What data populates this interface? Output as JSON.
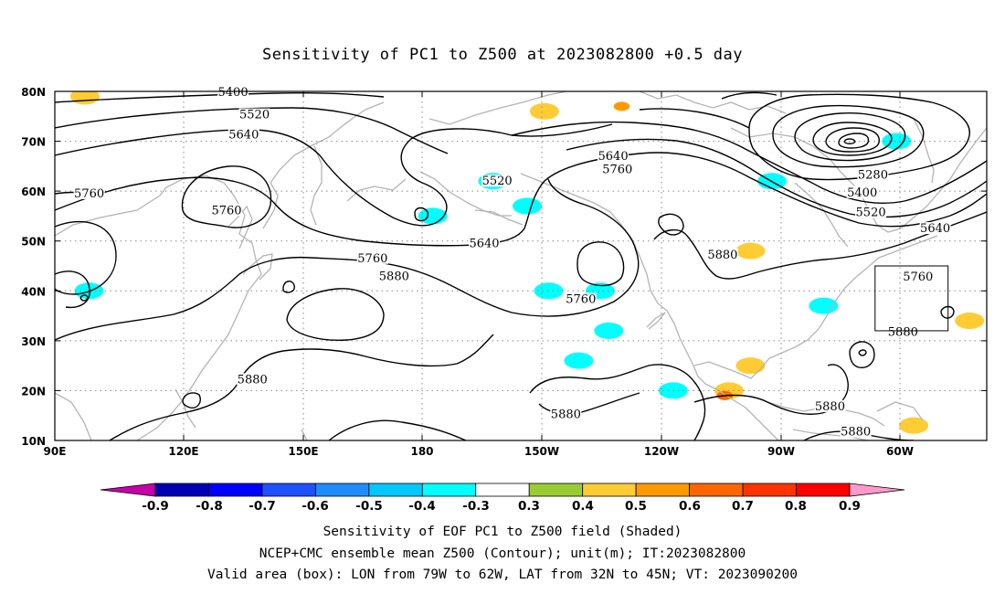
{
  "title": "Sensitivity of PC1 to Z500 at 2023082800 +0.5 day",
  "lat_labels": [
    "80N",
    "70N",
    "60N",
    "50N",
    "40N",
    "30N",
    "20N",
    "10N"
  ],
  "lon_labels": [
    "90E",
    "120E",
    "150E",
    "180",
    "150W",
    "120W",
    "90W",
    "60W"
  ],
  "map_extent": {
    "lon": [
      90,
      307
    ],
    "lat": [
      10,
      80
    ]
  },
  "contours": {
    "line_color": "#000000",
    "labels": [
      {
        "text": "5400",
        "lon": 131.5,
        "lat": 79.8
      },
      {
        "text": "5520",
        "lon": 136.5,
        "lat": 75.3
      },
      {
        "text": "5640",
        "lon": 134,
        "lat": 71.3
      },
      {
        "text": "5760",
        "lon": 98,
        "lat": 59.5
      },
      {
        "text": "5760",
        "lon": 130,
        "lat": 56.1
      },
      {
        "text": "5520",
        "lon": 193,
        "lat": 62
      },
      {
        "text": "5640",
        "lon": 220,
        "lat": 67
      },
      {
        "text": "5760",
        "lon": 221,
        "lat": 64.3
      },
      {
        "text": "5640",
        "lon": 190,
        "lat": 49.5
      },
      {
        "text": "5760",
        "lon": 164,
        "lat": 46.5
      },
      {
        "text": "5880",
        "lon": 169,
        "lat": 42.9
      },
      {
        "text": "5760",
        "lon": 212.5,
        "lat": 38.3
      },
      {
        "text": "5880",
        "lon": 245.5,
        "lat": 47.2
      },
      {
        "text": "5880",
        "lon": 136,
        "lat": 22.2
      },
      {
        "text": "5880",
        "lon": 209,
        "lat": 15.2
      },
      {
        "text": "5880",
        "lon": 270.5,
        "lat": 16.8
      },
      {
        "text": "5880",
        "lon": 276.5,
        "lat": 11.7
      },
      {
        "text": "5880",
        "lon": 287.5,
        "lat": 31.7
      },
      {
        "text": "5280",
        "lon": 280.5,
        "lat": 63.2
      },
      {
        "text": "5400",
        "lon": 278,
        "lat": 59.7
      },
      {
        "text": "5520",
        "lon": 280,
        "lat": 55.7
      },
      {
        "text": "5640",
        "lon": 295,
        "lat": 52.5
      },
      {
        "text": "5760",
        "lon": 291,
        "lat": 42.8
      }
    ]
  },
  "shading": [
    {
      "value": 0.4,
      "lon": 97,
      "lat": 79
    },
    {
      "value": 0.4,
      "lon": 204,
      "lat": 76
    },
    {
      "value": 0.5,
      "lon": 222,
      "lat": 77
    },
    {
      "value": -0.4,
      "lon": 192,
      "lat": 62
    },
    {
      "value": -0.4,
      "lon": 200,
      "lat": 57
    },
    {
      "value": -0.4,
      "lon": 178,
      "lat": 55
    },
    {
      "value": -0.4,
      "lon": 257,
      "lat": 62
    },
    {
      "value": -0.4,
      "lon": 286,
      "lat": 70
    },
    {
      "value": -0.4,
      "lon": 98,
      "lat": 40
    },
    {
      "value": -0.4,
      "lon": 205,
      "lat": 40
    },
    {
      "value": -0.4,
      "lon": 217,
      "lat": 40
    },
    {
      "value": -0.4,
      "lon": 219,
      "lat": 32
    },
    {
      "value": -0.4,
      "lon": 212,
      "lat": 26
    },
    {
      "value": -0.4,
      "lon": 234,
      "lat": 20
    },
    {
      "value": -0.4,
      "lon": 269,
      "lat": 37
    },
    {
      "value": 0.4,
      "lon": 252,
      "lat": 48
    },
    {
      "value": 0.4,
      "lon": 252,
      "lat": 25
    },
    {
      "value": 0.4,
      "lon": 247,
      "lat": 20
    },
    {
      "value": 0.6,
      "lon": 246,
      "lat": 19
    },
    {
      "value": 0.4,
      "lon": 303,
      "lat": 34
    },
    {
      "value": 0.4,
      "lon": 290,
      "lat": 13
    }
  ],
  "valid_box": {
    "lon": [
      281,
      298
    ],
    "lat": [
      32,
      45
    ]
  },
  "colorbar": {
    "labels": [
      "-0.9",
      "-0.8",
      "-0.7",
      "-0.6",
      "-0.5",
      "-0.4",
      "-0.3",
      "0.3",
      "0.4",
      "0.5",
      "0.6",
      "0.7",
      "0.8",
      "0.9"
    ],
    "colors": [
      "#0000b4",
      "#0000ff",
      "#1e50ff",
      "#1e8cff",
      "#00c8ff",
      "#00ffff",
      "#ffffff",
      "#99cc33",
      "#ffcc33",
      "#ff9900",
      "#ff6600",
      "#ff3300",
      "#ff0000"
    ],
    "low_color": "#c800aa",
    "high_color": "#ff99cc"
  },
  "captions": [
    "Sensitivity of EOF PC1 to Z500 field (Shaded)",
    "NCEP+CMC ensemble mean Z500 (Contour); unit(m); IT:2023082800",
    "Valid area (box): LON from 79W to 62W, LAT from 32N to 45N; VT: 2023090200"
  ]
}
